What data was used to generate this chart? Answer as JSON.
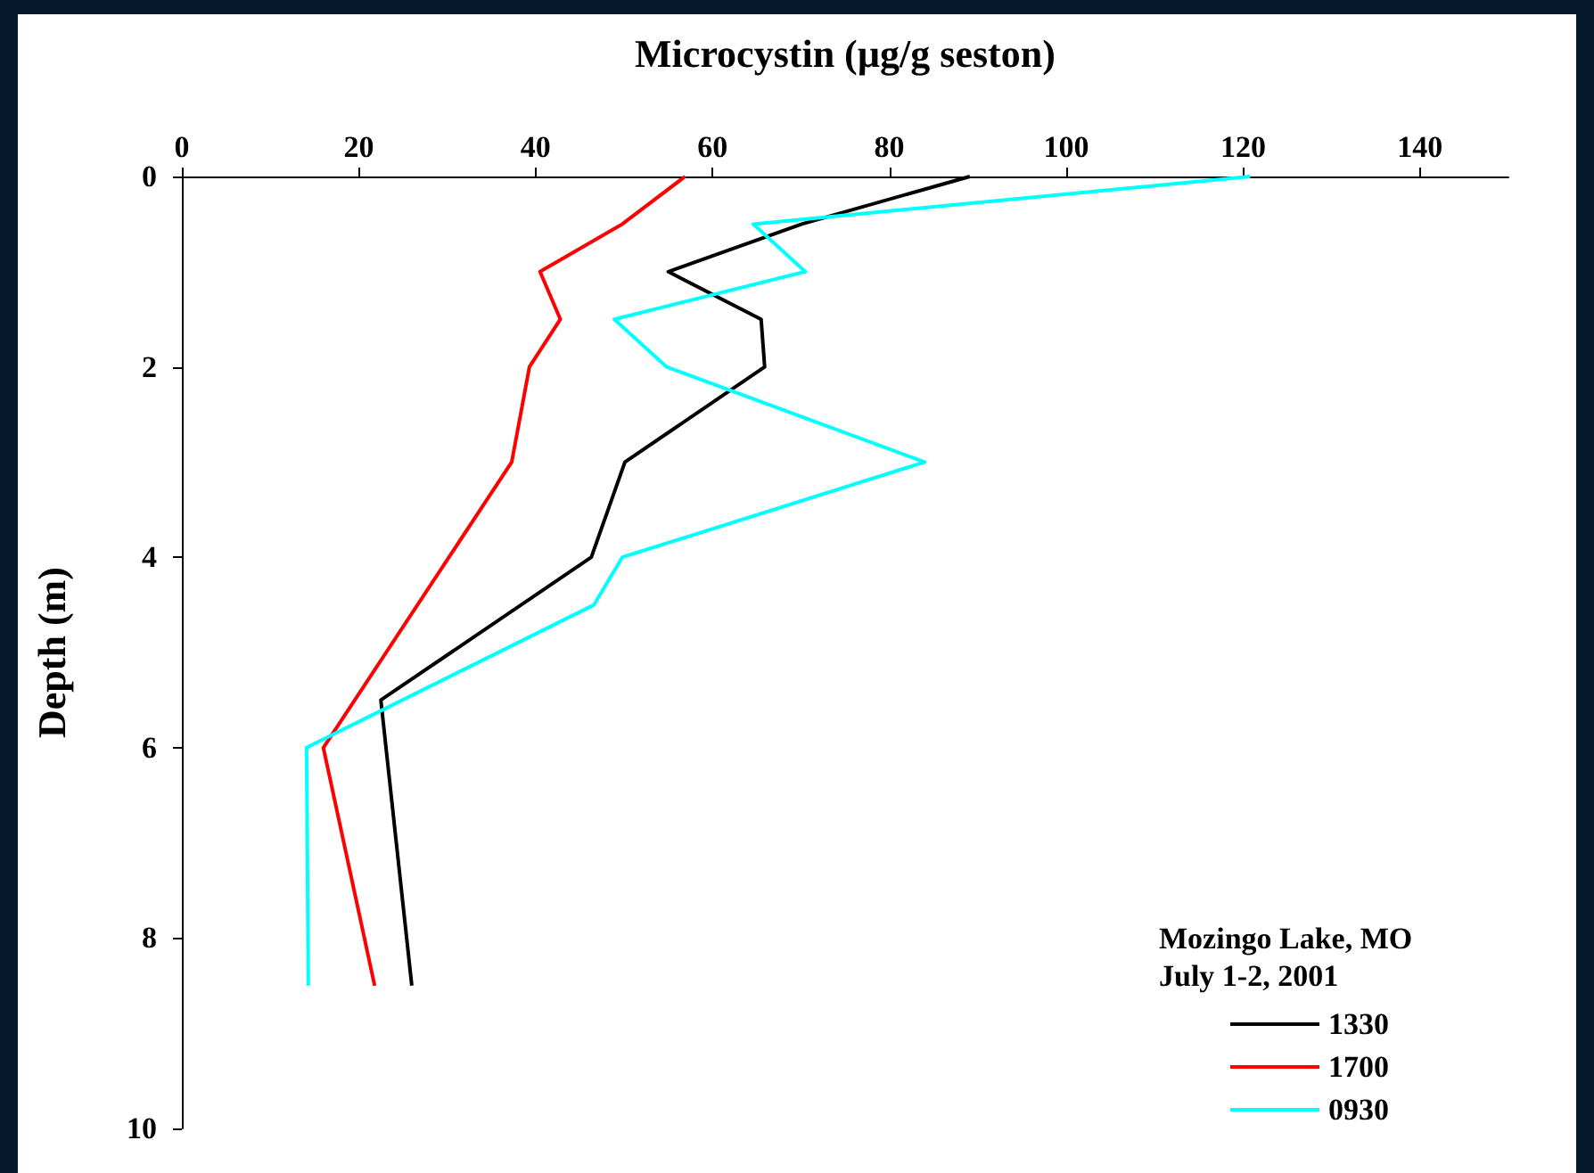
{
  "chart_data": {
    "type": "line",
    "xlabel": "Microcystin (µg/g seston)",
    "ylabel": "Depth (m)",
    "legend_title": "Mozingo Lake, MO\nJuly 1-2, 2001",
    "xlim": [
      0,
      150
    ],
    "xticks": [
      0,
      20,
      40,
      60,
      80,
      100,
      120,
      140
    ],
    "ylim": [
      10,
      0
    ],
    "yticks": [
      0,
      2,
      4,
      6,
      8,
      10
    ],
    "series": [
      {
        "name": "1330",
        "color": "#000000",
        "x": [
          89.1,
          70.1,
          55,
          65.5,
          65.9,
          50.1,
          46.3,
          22.5,
          26
        ],
        "values": [
          0,
          0.5,
          1,
          1.5,
          2,
          3,
          4,
          5.5,
          8.5
        ]
      },
      {
        "name": "1700",
        "color": "#ff0000",
        "x": [
          56.9,
          49.8,
          40.5,
          42.8,
          39.3,
          37.3,
          16,
          21.8
        ],
        "values": [
          0,
          0.5,
          1,
          1.5,
          2,
          3,
          6,
          8.5
        ]
      },
      {
        "name": "0930",
        "color": "#00ffff",
        "x": [
          120.8,
          64.6,
          70.5,
          48.9,
          54.8,
          84,
          49.8,
          46.6,
          14.1,
          14.3
        ],
        "values": [
          0,
          0.5,
          1,
          1.5,
          2,
          3,
          4,
          4.5,
          6,
          8.5
        ]
      }
    ],
    "legend": "bottom right",
    "grid": false,
    "marker": "none",
    "line_style": "solid"
  }
}
